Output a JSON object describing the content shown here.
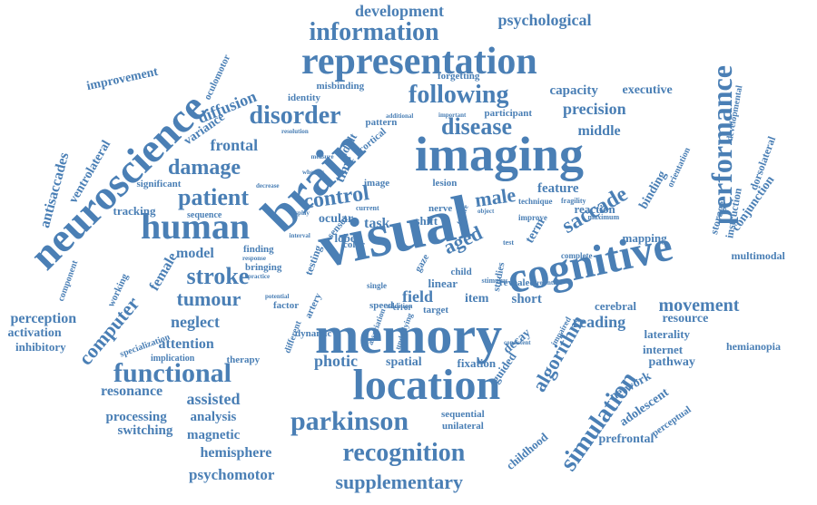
{
  "color": "#4a7fb5",
  "words": [
    "memory",
    "visual",
    "imaging",
    "brain",
    "location",
    "cognitive",
    "representation",
    "neuroscience",
    "human",
    "performance",
    "functional",
    "parkinson",
    "recognition",
    "simulation",
    "information",
    "disorder",
    "following",
    "disease",
    "control",
    "patient",
    "damage",
    "stroke",
    "algorithm",
    "computer",
    "supplementary",
    "saccade",
    "male",
    "aged",
    "tumour",
    "movement",
    "development",
    "psychological",
    "precision",
    "capacity",
    "executive",
    "middle",
    "frontal",
    "diffusion",
    "improvement",
    "antisaccades",
    "ventrolateral",
    "perception",
    "activation",
    "inhibitory",
    "attention",
    "neglect",
    "model",
    "female",
    "resonance",
    "assisted",
    "processing",
    "analysis",
    "switching",
    "magnetic",
    "hemisphere",
    "psychomotor",
    "photic",
    "spatial",
    "fixation",
    "field",
    "item",
    "short",
    "reading",
    "resource",
    "cerebral",
    "laterality",
    "internet",
    "hemianopia",
    "pathway",
    "network",
    "adolescent",
    "prefrontal",
    "childhood",
    "multimodal",
    "mapping",
    "conjunction",
    "dorsolateral",
    "storage",
    "instruction",
    "binding",
    "orientation",
    "feature",
    "reaction",
    "term",
    "task",
    "shift",
    "lobe",
    "time",
    "adult",
    "lesion",
    "image",
    "variance",
    "tracking",
    "significant",
    "sequence",
    "working",
    "component",
    "factor",
    "speed",
    "artery",
    "sequential",
    "unilateral",
    "decay",
    "guided",
    "therapy",
    "specialization",
    "implication",
    "identity",
    "misbinding",
    "forgetting",
    "participant",
    "pattern",
    "cortical",
    "oculomotor",
    "developmental",
    "nerve",
    "dynamic",
    "target",
    "revealed",
    "studies",
    "child",
    "linear",
    "sensor",
    "color",
    "bringing",
    "finding",
    "complete",
    "impaired",
    "perceptual",
    "maximum",
    "improve",
    "technique",
    "fragility",
    "additional",
    "important",
    "resolution",
    "measure",
    "decrease",
    "whereas",
    "ocular",
    "display",
    "current",
    "interval",
    "object",
    "failure",
    "retention",
    "consistent",
    "response",
    "practice",
    "testing",
    "potential",
    "underlying",
    "association",
    "single",
    "different",
    "addition",
    "test",
    "gaze",
    "error",
    "stimulus"
  ]
}
